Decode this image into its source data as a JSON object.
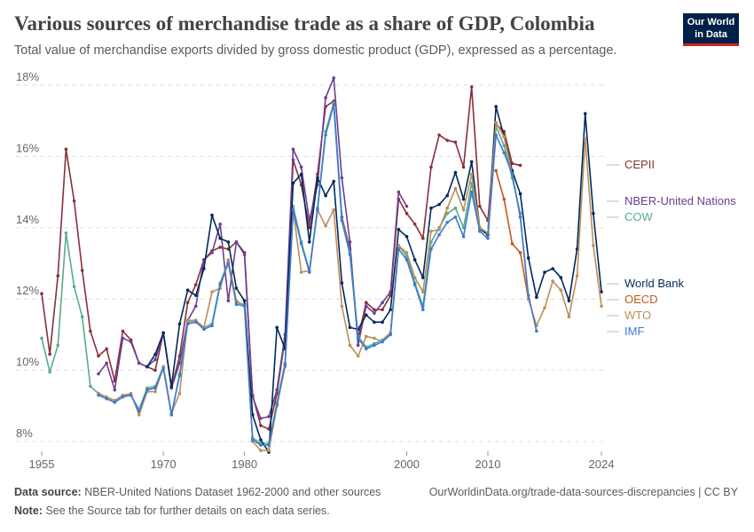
{
  "title": "Various sources of merchandise trade as a share of GDP, Colombia",
  "subtitle": "Total value of merchandise exports divided by gross domestic product (GDP), expressed as a percentage.",
  "logo": [
    "Our World",
    "in Data"
  ],
  "footer": {
    "source_label": "Data source:",
    "source": "NBER-United Nations Dataset 1962-2000 and other sources",
    "url": "OurWorldinData.org/trade-data-sources-discrepancies | CC BY",
    "note_label": "Note:",
    "note": "See the Source tab for further details on each data series."
  },
  "chart_data": {
    "type": "line",
    "xlim": [
      1955,
      2024
    ],
    "ylim": [
      8,
      18
    ],
    "x_ticks": [
      1955,
      1970,
      1980,
      2000,
      2010,
      2024
    ],
    "y_ticks": [
      8,
      10,
      12,
      14,
      16,
      18
    ],
    "y_tick_labels": [
      "8%",
      "10%",
      "12%",
      "14%",
      "16%",
      "18%"
    ],
    "grid": "horizontal dashed",
    "legend": "right, labels at line ends",
    "series": [
      {
        "name": "CEPII",
        "color": "#883039",
        "start": 1955,
        "values": [
          12.15,
          10.45,
          12.65,
          16.2,
          14.75,
          12.8,
          11.1,
          10.4,
          10.6,
          9.7,
          11.1,
          10.85,
          10.2,
          10.1,
          10.0,
          11.05,
          9.5,
          10.4,
          11.9,
          12.4,
          13.1,
          13.35,
          13.45,
          13.4,
          13.6,
          13.3,
          9.3,
          8.45,
          8.35,
          9.35,
          10.9,
          15.9,
          15.2,
          14.0,
          15.5,
          17.4,
          17.55,
          14.3,
          13.4,
          10.9,
          11.9,
          11.7,
          11.7,
          12.1,
          14.8,
          14.4,
          14.1,
          13.7,
          15.7,
          16.6,
          16.45,
          16.4,
          15.7,
          17.95,
          14.6,
          14.2,
          16.9,
          16.7,
          15.8,
          15.75
        ]
      },
      {
        "name": "NBER-United Nations",
        "color": "#6d3e91",
        "start": 1962,
        "values": [
          9.9,
          10.2,
          9.45,
          10.9,
          10.8,
          10.2,
          10.1,
          10.3,
          11.05,
          9.5,
          10.2,
          11.4,
          11.8,
          13.1,
          13.3,
          14.1,
          11.95,
          13.6,
          13.25,
          9.25,
          8.65,
          8.7,
          9.45,
          11.0,
          16.2,
          15.7,
          14.2,
          15.2,
          17.65,
          18.2,
          15.4,
          13.6,
          10.7,
          11.8,
          11.6,
          11.9,
          12.2,
          15.0,
          14.6
        ]
      },
      {
        "name": "COW",
        "color": "#58ac8c",
        "start": 1955,
        "values": [
          10.9,
          9.95,
          10.7,
          13.85,
          12.35,
          11.5,
          9.55,
          9.35,
          9.25,
          9.15,
          9.3,
          9.3,
          8.9,
          9.5,
          9.55,
          10.1,
          8.75,
          9.9,
          11.35,
          11.4,
          11.2,
          11.3,
          12.45,
          13.05,
          11.9,
          11.85,
          8.1,
          7.95,
          7.95,
          9.1,
          10.2,
          14.6,
          13.6,
          12.8,
          14.55,
          16.7,
          17.5,
          14.25,
          13.3,
          10.95,
          10.65,
          10.75,
          10.85,
          11.05,
          13.5,
          13.2,
          12.45,
          11.8,
          13.6,
          14.0,
          14.4,
          14.55,
          14.0,
          15.25,
          13.95,
          13.8,
          16.85,
          16.3,
          15.4,
          14.4
        ]
      },
      {
        "name": "World Bank",
        "color": "#00295b",
        "start": 1968,
        "values": [
          10.1,
          10.45,
          11.05,
          9.55,
          11.3,
          12.25,
          12.1,
          12.85,
          14.35,
          13.7,
          13.6,
          12.3,
          11.95,
          8.75,
          8.05,
          7.7,
          11.2,
          10.6,
          15.25,
          15.5,
          13.6,
          15.4,
          14.9,
          15.3,
          12.45,
          11.2,
          11.15,
          11.55,
          11.35,
          11.35,
          11.7,
          13.95,
          13.75,
          13.1,
          12.6,
          14.55,
          14.65,
          14.9,
          15.55,
          14.8,
          15.85,
          14.0,
          13.8,
          17.4,
          16.55,
          15.6,
          14.95,
          13.15,
          12.05,
          12.75,
          12.85,
          12.6,
          11.95,
          13.4,
          17.2,
          14.4,
          12.2
        ]
      },
      {
        "name": "OECD",
        "color": "#c05917",
        "start": 2011,
        "values": [
          15.6,
          14.8,
          13.55,
          13.3,
          12.0
        ]
      },
      {
        "name": "WTO",
        "color": "#bc8e5a",
        "start": 1962,
        "values": [
          9.35,
          9.25,
          9.15,
          9.3,
          9.35,
          8.75,
          9.4,
          9.4,
          10.1,
          8.8,
          9.35,
          11.4,
          11.4,
          11.2,
          12.2,
          12.3,
          13.1,
          11.95,
          11.8,
          8.0,
          7.75,
          7.75,
          9.0,
          10.1,
          14.5,
          12.75,
          12.8,
          14.5,
          14.05,
          14.5,
          11.8,
          10.7,
          10.4,
          10.95,
          10.9,
          10.8,
          11.05,
          13.5,
          13.3,
          12.6,
          12.2,
          13.9,
          13.95,
          14.55,
          15.1,
          14.5,
          15.5,
          14.0,
          13.85,
          16.95,
          16.55,
          15.5,
          14.3,
          12.0,
          11.25,
          11.75,
          12.5,
          12.25,
          11.5,
          12.65,
          16.5,
          13.5,
          11.8
        ]
      },
      {
        "name": "IMF",
        "color": "#3c7ad3",
        "start": 1962,
        "values": [
          9.3,
          9.2,
          9.1,
          9.25,
          9.3,
          8.85,
          9.45,
          9.5,
          10.05,
          8.75,
          9.85,
          11.3,
          11.35,
          11.15,
          11.25,
          12.4,
          13.0,
          11.85,
          11.8,
          8.05,
          7.9,
          7.9,
          9.05,
          10.15,
          14.5,
          13.55,
          12.75,
          14.5,
          16.6,
          17.45,
          14.2,
          13.25,
          10.9,
          10.6,
          10.7,
          10.8,
          11.0,
          13.4,
          13.1,
          12.4,
          11.7,
          13.4,
          13.8,
          14.15,
          14.3,
          13.75,
          15.0,
          13.9,
          13.7,
          16.6,
          16.1,
          15.5,
          14.3,
          12.1,
          11.1
        ]
      }
    ]
  }
}
